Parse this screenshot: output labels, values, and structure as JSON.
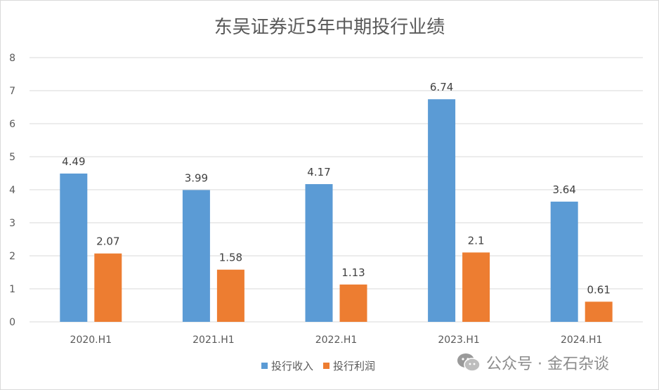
{
  "chart_data": {
    "type": "bar",
    "title": "东吴证券近5年中期投行业绩",
    "categories": [
      "2020.H1",
      "2021.H1",
      "2022.H1",
      "2023.H1",
      "2024.H1"
    ],
    "series": [
      {
        "name": "投行收入",
        "values": [
          4.49,
          3.99,
          4.17,
          6.74,
          3.64
        ],
        "labels": [
          "4.49",
          "3.99",
          "4.17",
          "6.74",
          "3.64"
        ],
        "color": "#5b9bd5"
      },
      {
        "name": "投行利润",
        "values": [
          2.07,
          1.58,
          1.13,
          2.1,
          0.61
        ],
        "labels": [
          "2.07",
          "1.58",
          "1.13",
          "2.1",
          "0.61"
        ],
        "color": "#ed7d31"
      }
    ],
    "ylim": [
      0,
      8
    ],
    "yticks": [
      "0",
      "1",
      "2",
      "3",
      "4",
      "5",
      "6",
      "7",
      "8"
    ],
    "grid": true,
    "legend": "bottom",
    "xlabel": "",
    "ylabel": ""
  },
  "watermark": {
    "icon": "wechat-icon",
    "text": "公众号 · 金石杂谈"
  }
}
